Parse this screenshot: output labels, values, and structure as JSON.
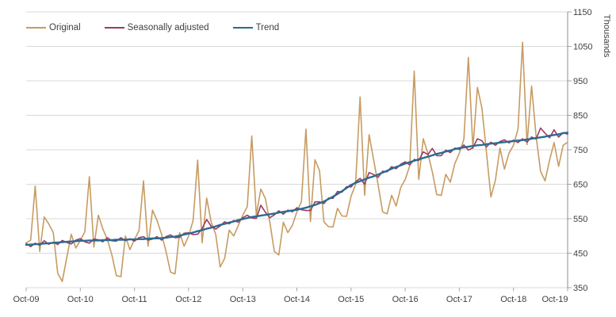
{
  "chart_data": {
    "type": "line",
    "title": "",
    "xlabel": "",
    "ylabel": "Thousands",
    "ylim": [
      350,
      1150
    ],
    "y_ticks": [
      350,
      450,
      550,
      650,
      750,
      850,
      950,
      1050,
      1150
    ],
    "x_tick_labels": [
      "Oct-09",
      "Oct-10",
      "Oct-11",
      "Oct-12",
      "Oct-13",
      "Oct-14",
      "Oct-15",
      "Oct-16",
      "Oct-17",
      "Oct-18",
      "Oct-19"
    ],
    "x_tick_interval_months": 12,
    "x_start": "Oct-09",
    "x_end": "Oct-19",
    "points_per_series": 121,
    "grid": "horizontal",
    "legend_position": "top-left",
    "series": [
      {
        "name": "Original",
        "color": "#C79B61",
        "width": 1.6,
        "values": [
          480,
          488,
          645,
          455,
          555,
          535,
          510,
          392,
          368,
          437,
          505,
          465,
          487,
          512,
          672,
          468,
          560,
          520,
          490,
          445,
          385,
          382,
          500,
          460,
          490,
          515,
          660,
          470,
          575,
          545,
          505,
          455,
          395,
          390,
          510,
          470,
          500,
          545,
          720,
          480,
          610,
          540,
          505,
          410,
          435,
          517,
          500,
          530,
          560,
          585,
          790,
          560,
          636,
          609,
          540,
          455,
          445,
          540,
          510,
          531,
          570,
          600,
          810,
          542,
          721,
          690,
          541,
          527,
          526,
          580,
          558,
          557,
          615,
          649,
          903,
          618,
          794,
          721,
          649,
          570,
          564,
          618,
          587,
          640,
          664,
          703,
          978,
          664,
          782,
          740,
          686,
          620,
          618,
          679,
          656,
          710,
          740,
          780,
          1018,
          754,
          931,
          871,
          745,
          613,
          662,
          755,
          694,
          740,
          763,
          810,
          1062,
          765,
          935,
          790,
          687,
          660,
          720,
          771,
          702,
          763,
          772
        ]
      },
      {
        "name": "Seasonally adjusted",
        "color": "#9C3A64",
        "width": 1.6,
        "values": [
          478,
          469,
          479,
          473,
          486,
          476,
          482,
          475,
          487,
          481,
          477,
          488,
          492,
          483,
          479,
          491,
          489,
          483,
          495,
          486,
          485,
          495,
          486,
          492,
          485,
          495,
          498,
          488,
          491,
          498,
          488,
          498,
          503,
          495,
          496,
          508,
          509,
          504,
          505,
          522,
          548,
          528,
          520,
          529,
          541,
          535,
          545,
          540,
          553,
          560,
          552,
          551,
          589,
          569,
          553,
          561,
          573,
          563,
          575,
          570,
          582,
          576,
          574,
          574,
          599,
          599,
          594,
          610,
          609,
          629,
          627,
          643,
          642,
          657,
          667,
          650,
          684,
          678,
          670,
          688,
          686,
          701,
          695,
          708,
          715,
          706,
          722,
          719,
          744,
          736,
          754,
          733,
          733,
          749,
          742,
          755,
          751,
          764,
          749,
          756,
          782,
          776,
          758,
          772,
          763,
          774,
          779,
          770,
          778,
          771,
          782,
          772,
          787,
          781,
          813,
          798,
          785,
          808,
          787,
          800,
          795
        ]
      },
      {
        "name": "Trend",
        "color": "#2C6B92",
        "width": 2.4,
        "values": [
          474,
          475,
          476,
          477,
          478,
          479,
          480,
          481,
          482,
          483,
          484,
          485,
          486,
          486,
          487,
          487,
          487,
          488,
          488,
          488,
          489,
          489,
          489,
          490,
          490,
          491,
          491,
          492,
          493,
          493,
          494,
          495,
          497,
          498,
          501,
          504,
          507,
          510,
          514,
          517,
          521,
          524,
          528,
          532,
          535,
          539,
          542,
          546,
          549,
          552,
          555,
          557,
          559,
          561,
          563,
          565,
          568,
          570,
          572,
          574,
          576,
          579,
          582,
          586,
          590,
          595,
          600,
          607,
          614,
          622,
          630,
          639,
          648,
          654,
          659,
          664,
          669,
          673,
          678,
          684,
          689,
          695,
          700,
          705,
          710,
          714,
          718,
          722,
          726,
          730,
          734,
          738,
          741,
          745,
          748,
          752,
          755,
          757,
          759,
          761,
          763,
          764,
          766,
          768,
          769,
          771,
          772,
          774,
          775,
          777,
          778,
          780,
          782,
          784,
          786,
          788,
          791,
          793,
          795,
          798,
          800
        ]
      }
    ]
  },
  "colors": {
    "grid": "#D9D9D9",
    "axis_line": "#8C8C8C",
    "tick": "#A6A6A6",
    "text": "#404040",
    "background": "#FFFFFF"
  }
}
